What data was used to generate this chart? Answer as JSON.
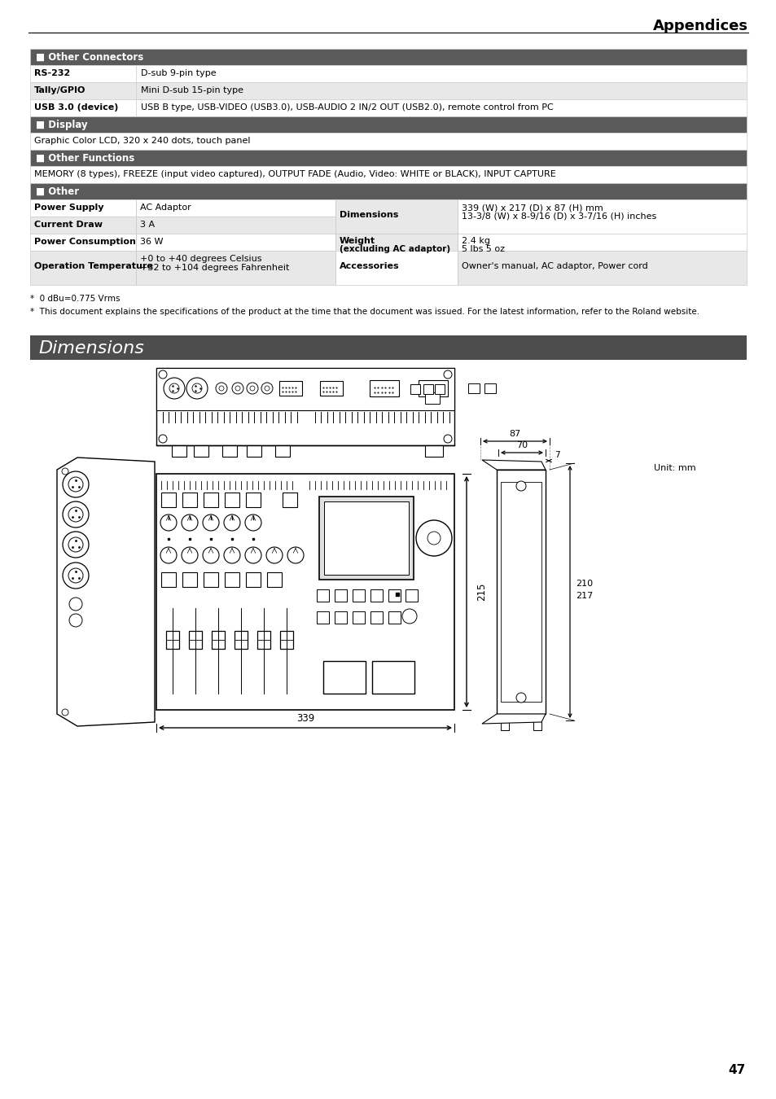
{
  "page_title": "Appendices",
  "page_number": "47",
  "bg_color": "#ffffff",
  "header_bg": "#5a5a5a",
  "header_text_color": "#ffffff",
  "row_bg_light": "#ffffff",
  "row_bg_alt": "#e8e8e8",
  "border_color": "#cccccc",
  "section_headers": [
    "■ Other Connectors",
    "■ Display",
    "■ Other Functions",
    "■ Other"
  ],
  "conn_rows": [
    {
      "label": "RS-232",
      "value": "D-sub 9-pin type",
      "bold_label": true
    },
    {
      "label": "Tally/GPIO",
      "value": "Mini D-sub 15-pin type",
      "bold_label": true
    },
    {
      "label": "USB 3.0 (device)",
      "value": "USB B type, USB-VIDEO (USB3.0), USB-AUDIO 2 IN/2 OUT (USB2.0), remote control from PC",
      "bold_label": true
    }
  ],
  "display_text": "Graphic Color LCD, 320 x 240 dots, touch panel",
  "other_functions_text": "MEMORY (8 types), FREEZE (input video captured), OUTPUT FADE (Audio, Video: WHITE or BLACK), INPUT CAPTURE",
  "footnote1": "*  0 dBu=0.775 Vrms",
  "footnote2": "*  This document explains the specifications of the product at the time that the document was issued. For the latest information, refer to the Roland website.",
  "dimensions_header": "Dimensions",
  "unit_text": "Unit: mm",
  "dim_339": "339",
  "dim_87": "87",
  "dim_70": "70",
  "dim_7": "7",
  "dim_215": "215",
  "dim_210": "210",
  "dim_217": "217"
}
